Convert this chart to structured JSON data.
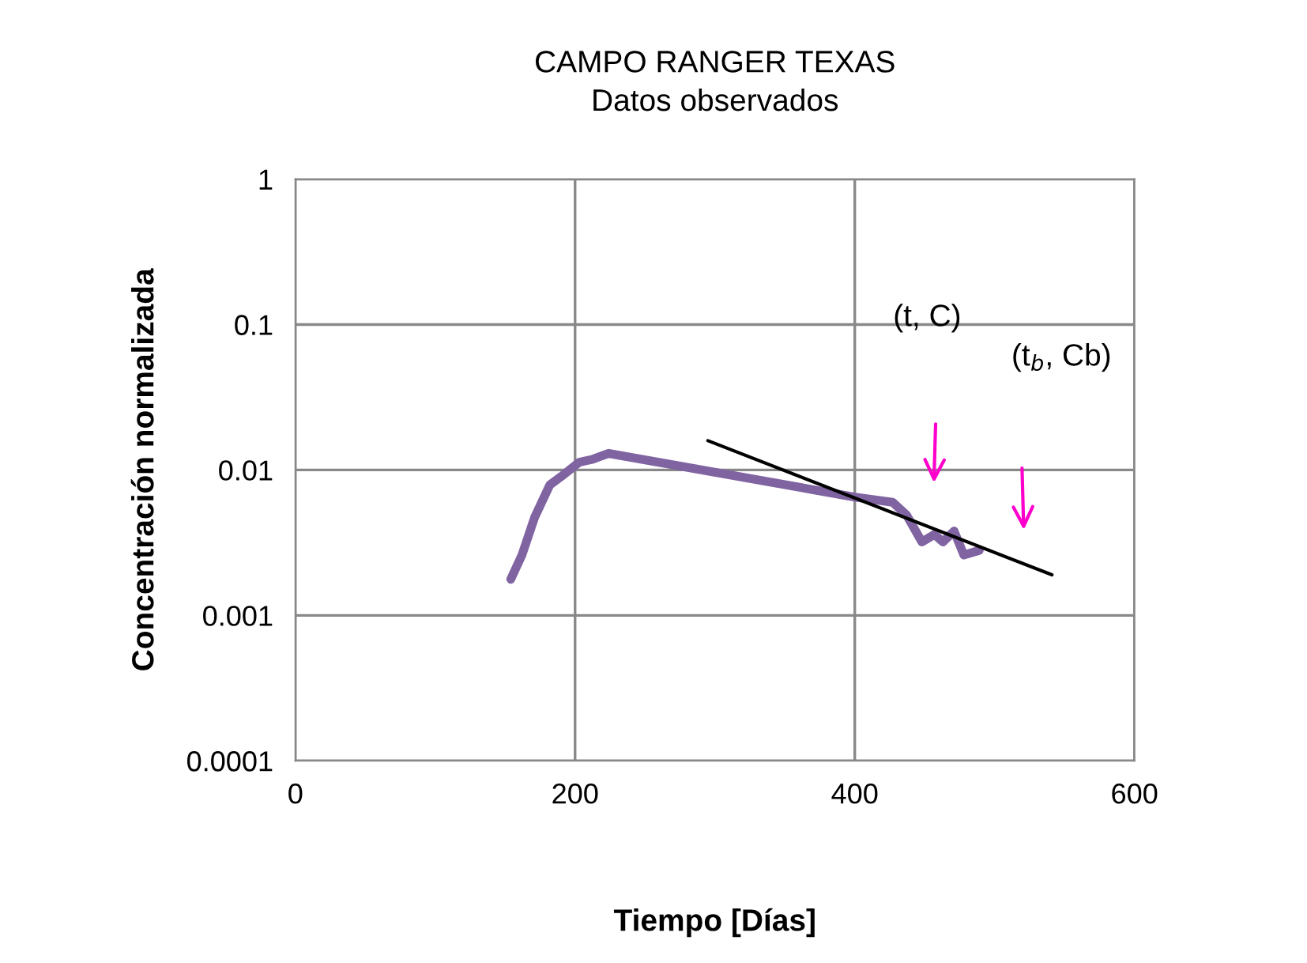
{
  "chart_data": {
    "type": "line",
    "title": "CAMPO RANGER TEXAS",
    "subtitle": "Datos observados",
    "xlabel": "Tiempo [Días]",
    "ylabel": "Concentración normalizada",
    "series": [
      {
        "color": "#8064a2",
        "x": [
          154,
          162,
          171,
          182,
          190,
          203,
          212,
          224,
          400,
          427,
          437,
          448,
          457,
          463,
          471,
          478,
          489
        ],
        "values": [
          0.00177,
          0.0026,
          0.0047,
          0.0079,
          0.009,
          0.0113,
          0.0118,
          0.013,
          0.0065,
          0.006,
          0.0049,
          0.0032,
          0.0036,
          0.0032,
          0.0038,
          0.0026,
          0.0028
        ]
      },
      {
        "color": "#000000",
        "x": [
          295,
          541
        ],
        "values": [
          0.0159,
          0.0019
        ]
      }
    ],
    "annotations": [
      "(t, C)",
      "(t$_{b}$, Cb)"
    ],
    "xlim": [
      0,
      600
    ],
    "xticks": [
      0,
      200,
      400,
      600
    ],
    "ylim": [
      0.0001,
      1
    ],
    "yticks": [
      {
        "value": 0.0001,
        "label": "0.0001"
      },
      {
        "value": 0.001,
        "label": "0.001"
      },
      {
        "value": 0.01,
        "label": "0.01"
      },
      {
        "value": 0.1,
        "label": "0.1"
      },
      1
    ],
    "log": true,
    "grid": true,
    "legend": false
  }
}
